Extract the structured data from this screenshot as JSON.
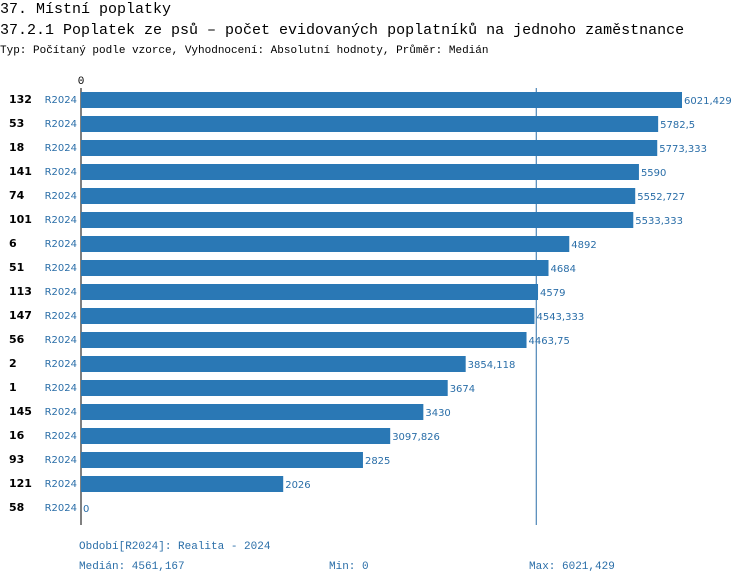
{
  "chart_data": {
    "type": "bar",
    "heading": "37. Místní poplatky",
    "title": "37.2.1 Poplatek ze psů – počet evidovaných poplatníků na jednoho zaměstnance",
    "subtitle": "Typ: Počítaný podle vzorce, Vyhodnocení: Absolutní hodnoty, Průměr: Medián",
    "categories": [
      "132",
      "53",
      "18",
      "141",
      "74",
      "101",
      "6",
      "51",
      "113",
      "147",
      "56",
      "2",
      "1",
      "145",
      "16",
      "93",
      "121",
      "58"
    ],
    "period_labels": [
      "R2024",
      "R2024",
      "R2024",
      "R2024",
      "R2024",
      "R2024",
      "R2024",
      "R2024",
      "R2024",
      "R2024",
      "R2024",
      "R2024",
      "R2024",
      "R2024",
      "R2024",
      "R2024",
      "R2024",
      "R2024"
    ],
    "values": [
      6021.429,
      5782.5,
      5773.333,
      5590,
      5552.727,
      5533.333,
      4892,
      4684,
      4579,
      4543.333,
      4463.75,
      3854.118,
      3674,
      3430,
      3097.826,
      2825,
      2026,
      0
    ],
    "value_labels": [
      "6021,429",
      "5782,5",
      "5773,333",
      "5590",
      "5552,727",
      "5533,333",
      "4892",
      "4684",
      "4579",
      "4543,333",
      "4463,75",
      "3854,118",
      "3674",
      "3430",
      "3097,826",
      "2825",
      "2026",
      "0"
    ],
    "color": "#2a78b5",
    "xlim": [
      0,
      6021.429
    ],
    "xticks": [
      0
    ],
    "median": 4561.167,
    "footer_period": "Období[R2024]: Realita - 2024",
    "footer_median": "Medián: 4561,167",
    "footer_min": "Min: 0",
    "footer_max": "Max: 6021,429"
  }
}
